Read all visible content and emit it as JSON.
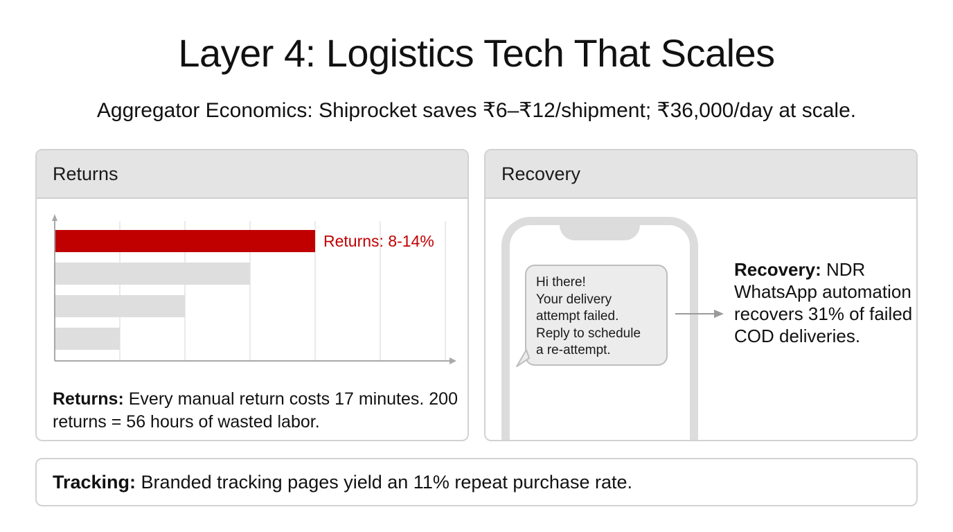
{
  "page": {
    "title": "Layer 4: Logistics Tech That Scales",
    "subtitle": "Aggregator Economics: Shiprocket saves ₹6–₹12/shipment; ₹36,000/day at scale."
  },
  "returns_panel": {
    "header": "Returns",
    "description_label": "Returns:",
    "description_text": " Every manual return costs 17 minutes. 200 returns = 56 hours of wasted labor."
  },
  "recovery_panel": {
    "header": "Recovery",
    "message_lines": [
      "Hi there!",
      "Your delivery",
      "attempt failed.",
      "Reply to schedule",
      "a re-attempt."
    ],
    "description_label": "Recovery:",
    "description_text": " NDR WhatsApp automation recovers 31% of failed COD deliveries."
  },
  "tracking": {
    "label": "Tracking:",
    "text": " Branded tracking pages yield an 11% repeat purchase rate."
  },
  "chart_data": {
    "type": "bar",
    "orientation": "horizontal",
    "categories": [
      "",
      "",
      "",
      ""
    ],
    "values": [
      4,
      3,
      2,
      1
    ],
    "xlim": [
      0,
      6
    ],
    "grid": true,
    "bar_colors": [
      "#c00000",
      "#dedede",
      "#dedede",
      "#dedede"
    ],
    "data_labels": [
      "Returns: 8-14%",
      "",
      "",
      ""
    ],
    "label_color": "#c00000"
  },
  "colors": {
    "accent_red": "#c00000",
    "muted_bar": "#dedede",
    "header_bg": "#e4e4e4",
    "border": "#d2d2d2"
  }
}
